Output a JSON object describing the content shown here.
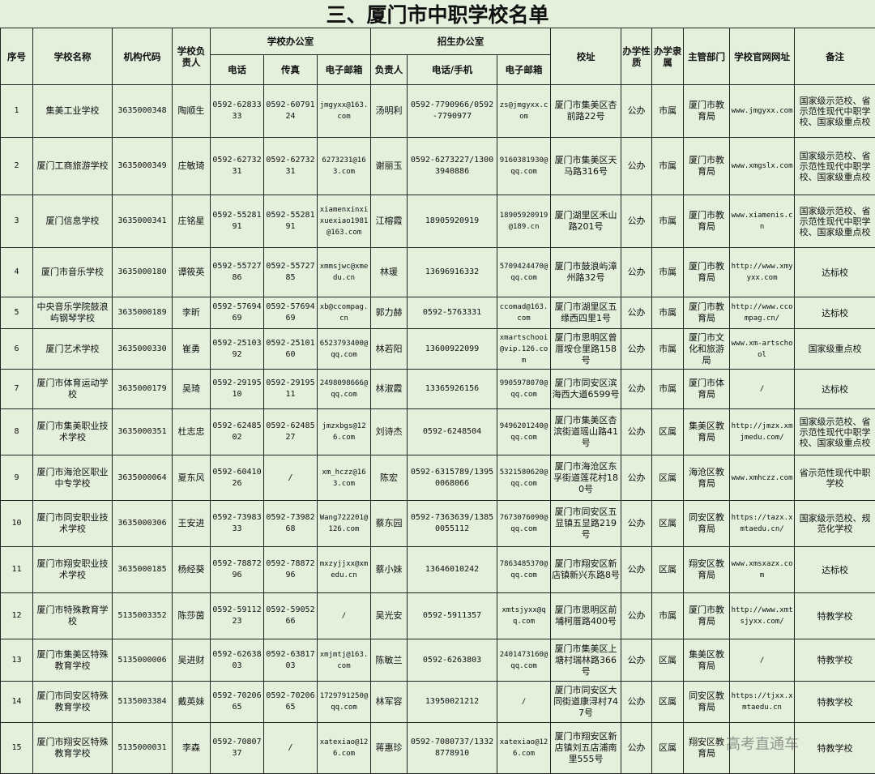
{
  "title": "三、厦门市中职学校名单",
  "headers": {
    "index": "序号",
    "name": "学校名称",
    "code": "机构代码",
    "principal": "学校负责人",
    "school_office": "学校办公室",
    "phone": "电话",
    "fax": "传真",
    "email": "电子邮箱",
    "admissions_office": "招生办公室",
    "contact": "负责人",
    "adm_phone": "电话/手机",
    "adm_email": "电子邮箱",
    "address": "校址",
    "nature": "办学性质",
    "affiliation": "办学隶属",
    "authority": "主管部门",
    "website": "学校官网网址",
    "notes": "备注"
  },
  "rows": [
    [
      "1",
      "集美工业学校",
      "3635000348",
      "陶顺生",
      "0592-6283333",
      "0592-6079124",
      "jmgyxx@163.com",
      "汤明利",
      "0592-7790966/0592-7790977",
      "zs@jmgyxx.com",
      "厦门市集美区杏前路22号",
      "公办",
      "市属",
      "厦门市教育局",
      "www.jmgyxx.com",
      "国家级示范校、省示范性现代中职学校、国家级重点校"
    ],
    [
      "2",
      "厦门工商旅游学校",
      "3635000349",
      "庄敏琦",
      "0592-6273231",
      "0592-6273231",
      "6273231@163.com",
      "谢丽玉",
      "0592-6273227/13003940886",
      "9160381930@qq.com",
      "厦门市集美区天马路316号",
      "公办",
      "市属",
      "厦门市教育局",
      "www.xmgslx.com",
      "国家级示范校、省示范性现代中职学校、国家级重点校"
    ],
    [
      "3",
      "厦门信息学校",
      "3635000341",
      "庄铭星",
      "0592-5528191",
      "0592-5528191",
      "xiamenxinxixuexiao1981@163.com",
      "江榕霞",
      "18905920919",
      "18905920919@189.cn",
      "厦门湖里区禾山路201号",
      "公办",
      "市属",
      "厦门市教育局",
      "www.xiamenis.cn",
      "国家级示范校、省示范性现代中职学校、国家级重点校"
    ],
    [
      "4",
      "厦门市音乐学校",
      "3635000180",
      "谭筱英",
      "0592-5572786",
      "0592-5572785",
      "xmmsjwc@xmedu.cn",
      "林瑗",
      "13696916332",
      "5709424470@qq.com",
      "厦门市鼓浪屿漳州路32号",
      "公办",
      "市属",
      "厦门市教育局",
      "http://www.xmyyxx.com",
      "达标校"
    ],
    [
      "5",
      "中央音乐学院鼓浪屿钢琴学校",
      "3635000189",
      "李昕",
      "0592-5769469",
      "0592-5769469",
      "xb@ccompag.cn",
      "郭力赫",
      "0592-5763331",
      "ccomad@163.com",
      "厦门市湖里区五缘西四里1号",
      "公办",
      "市属",
      "厦门市教育局",
      "http://www.ccompag.cn/",
      "达标校"
    ],
    [
      "6",
      "厦门艺术学校",
      "3635000330",
      "崔勇",
      "0592-2510392",
      "0592-2510160",
      "6523793400@qq.com",
      "林若阳",
      "13600922099",
      "xmartschooi@vip.126.com",
      "厦门市思明区曾厝垵仓里路158号",
      "公办",
      "市属",
      "厦门市文化和旅游局",
      "www.xm-artschool",
      "国家级重点校"
    ],
    [
      "7",
      "厦门市体育运动学校",
      "3635000179",
      "吴琦",
      "0592-2919510",
      "0592-2919511",
      "2498098666@qq.com",
      "林淑霞",
      "13365926156",
      "9905978070@qq.com",
      "厦门市同安区滨海西大道6599号",
      "公办",
      "市属",
      "厦门市体育局",
      "/",
      "达标校"
    ],
    [
      "8",
      "厦门市集美职业技术学校",
      "3635000351",
      "杜志忠",
      "0592-6248502",
      "0592-6248527",
      "jmzxbgs@126.com",
      "刘诗杰",
      "0592-6248504",
      "9496201240@qq.com",
      "厦门市集美区杏滨街道瑶山路41号",
      "公办",
      "区属",
      "集美区教育局",
      "http://jmzx.xmjmedu.com/",
      "国家级示范校、省示范性现代中职学校、国家级重点校"
    ],
    [
      "9",
      "厦门市海沧区职业中专学校",
      "3635000064",
      "夏东风",
      "0592-6041026",
      "/",
      "xm_hczz@163.com",
      "陈宏",
      "0592-6315789/13950068066",
      "5321580620@qq.com",
      "厦门市海沧区东孚街道莲花村180号",
      "公办",
      "区属",
      "海沧区教育局",
      "www.xmhczz.com",
      "省示范性现代中职学校"
    ],
    [
      "10",
      "厦门市同安职业技术学校",
      "3635000306",
      "王安进",
      "0592-7398333",
      "0592-7398268",
      "Wang722201@126.com",
      "蔡东园",
      "0592-7363639/13850055112",
      "7673076090@qq.com",
      "厦门市同安区五显镇五显路219号",
      "公办",
      "区属",
      "同安区教育局",
      "https://tazx.xmtaedu.cn/",
      "国家级示范校、规范化学校"
    ],
    [
      "11",
      "厦门市翔安职业技术学校",
      "3635000185",
      "杨经葵",
      "0592-7887296",
      "0592-7887296",
      "mxzyjjxx@xmedu.cn",
      "蔡小妹",
      "13646010242",
      "7863485370@qq.com",
      "厦门市翔安区新店镇新兴东路8号",
      "公办",
      "区属",
      "翔安区教育局",
      "www.xmsxazx.com",
      "达标校"
    ],
    [
      "12",
      "厦门市特殊教育学校",
      "5135003352",
      "陈莎茵",
      "0592-5911223",
      "0592-5905266",
      "/",
      "吴光安",
      "0592-5911357",
      "xmtsjyxx@qq.com",
      "厦门市思明区前埔柯厝路400号",
      "公办",
      "市属",
      "厦门市教育局",
      "http://www.xmtsjyxx.com/",
      "特教学校"
    ],
    [
      "13",
      "厦门市集美区特殊教育学校",
      "5135000006",
      "吴进财",
      "0592-6263803",
      "0592-6381703",
      "xmjmtj@163.com",
      "陈敏兰",
      "0592-6263803",
      "2401473160@qq.com",
      "厦门市集美区上塘村瑞林路366号",
      "公办",
      "区属",
      "集美区教育局",
      "/",
      "特教学校"
    ],
    [
      "14",
      "厦门市同安区特殊教育学校",
      "5135003384",
      "戴英妹",
      "0592-7020665",
      "0592-7020665",
      "1729791250@qq.com",
      "林军容",
      "13950021212",
      "/",
      "厦门市同安区大同街道康浔村747号",
      "公办",
      "区属",
      "同安区教育局",
      "https://tjxx.xmtaedu.cn",
      "特教学校"
    ],
    [
      "15",
      "厦门市翔安区特殊教育学校",
      "5135000031",
      "李森",
      "0592-7080737",
      "/",
      "xatexiao@126.com",
      "蒋惠珍",
      "0592-7080737/13328778910",
      "xatexiao@126.com",
      "厦门市翔安区新店镇刘五店浦南里555号",
      "公办",
      "区属",
      "翔安区教育局",
      "",
      "特教学校"
    ]
  ],
  "watermark": "高考直通车"
}
